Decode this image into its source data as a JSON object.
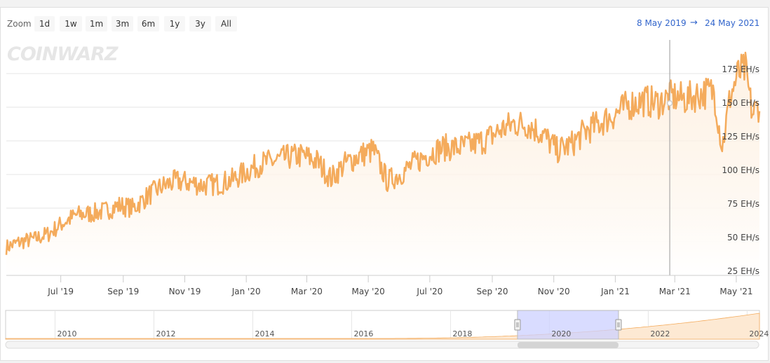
{
  "zoom": {
    "label": "Zoom",
    "buttons": [
      "1d",
      "1w",
      "1m",
      "3m",
      "6m",
      "1y",
      "3y",
      "All"
    ]
  },
  "range": {
    "from": "8 May 2019",
    "arrow": "→",
    "to": "24 May 2021"
  },
  "logo": "COINWARZ",
  "colors": {
    "line": "#f4ab5c",
    "fill_top": "#fde9d3",
    "fill_bottom": "#ffffff",
    "navigator_selection": "#ccd0ff",
    "range_text": "#3366cc"
  },
  "chart_data": {
    "type": "line",
    "y_unit": "EH/s",
    "y_ticks": [
      "25 EH/s",
      "50 EH/s",
      "75 EH/s",
      "100 EH/s",
      "125 EH/s",
      "150 EH/s",
      "175 EH/s"
    ],
    "ylim": [
      25,
      200
    ],
    "x_ticks": [
      "Jul '19",
      "Sep '19",
      "Nov '19",
      "Jan '20",
      "Mar '20",
      "May '20",
      "Jul '20",
      "Sep '20",
      "Nov '20",
      "Jan '21",
      "Mar '21",
      "May '21"
    ],
    "xlim": [
      "2019-05-08",
      "2021-05-24"
    ],
    "grid": true,
    "series": [
      {
        "values": [
          [
            "2019-05-08",
            46
          ],
          [
            "2019-05-22",
            50
          ],
          [
            "2019-06-05",
            52
          ],
          [
            "2019-06-19",
            56
          ],
          [
            "2019-07-03",
            64
          ],
          [
            "2019-07-17",
            70
          ],
          [
            "2019-07-31",
            71
          ],
          [
            "2019-08-14",
            73
          ],
          [
            "2019-08-28",
            77
          ],
          [
            "2019-09-11",
            75
          ],
          [
            "2019-09-25",
            84
          ],
          [
            "2019-10-09",
            91
          ],
          [
            "2019-10-23",
            95
          ],
          [
            "2019-11-06",
            94
          ],
          [
            "2019-11-20",
            92
          ],
          [
            "2019-12-04",
            93
          ],
          [
            "2019-12-18",
            96
          ],
          [
            "2020-01-01",
            102
          ],
          [
            "2020-01-15",
            108
          ],
          [
            "2020-01-29",
            110
          ],
          [
            "2020-02-12",
            113
          ],
          [
            "2020-02-26",
            114
          ],
          [
            "2020-03-11",
            110
          ],
          [
            "2020-03-25",
            97
          ],
          [
            "2020-04-08",
            108
          ],
          [
            "2020-04-22",
            114
          ],
          [
            "2020-05-06",
            118
          ],
          [
            "2020-05-20",
            95
          ],
          [
            "2020-06-03",
            101
          ],
          [
            "2020-06-17",
            109
          ],
          [
            "2020-07-01",
            116
          ],
          [
            "2020-07-15",
            120
          ],
          [
            "2020-07-29",
            120
          ],
          [
            "2020-08-12",
            122
          ],
          [
            "2020-08-26",
            126
          ],
          [
            "2020-09-09",
            133
          ],
          [
            "2020-09-23",
            138
          ],
          [
            "2020-10-07",
            137
          ],
          [
            "2020-10-21",
            130
          ],
          [
            "2020-11-04",
            118
          ],
          [
            "2020-11-18",
            122
          ],
          [
            "2020-12-02",
            132
          ],
          [
            "2020-12-16",
            138
          ],
          [
            "2021-01-01",
            145
          ],
          [
            "2021-01-15",
            152
          ],
          [
            "2021-01-29",
            155
          ],
          [
            "2021-02-12",
            153
          ],
          [
            "2021-02-26",
            158
          ],
          [
            "2021-03-12",
            156
          ],
          [
            "2021-03-26",
            160
          ],
          [
            "2021-04-09",
            162
          ],
          [
            "2021-04-17",
            120
          ],
          [
            "2021-04-25",
            158
          ],
          [
            "2021-05-03",
            175
          ],
          [
            "2021-05-10",
            178
          ],
          [
            "2021-05-17",
            145
          ],
          [
            "2021-05-24",
            152
          ]
        ]
      }
    ],
    "navigator": {
      "x_ticks": [
        "2010",
        "2012",
        "2014",
        "2016",
        "2018",
        "2020",
        "2022",
        "2024"
      ],
      "selection": [
        "2019-05-08",
        "2021-05-24"
      ]
    }
  }
}
